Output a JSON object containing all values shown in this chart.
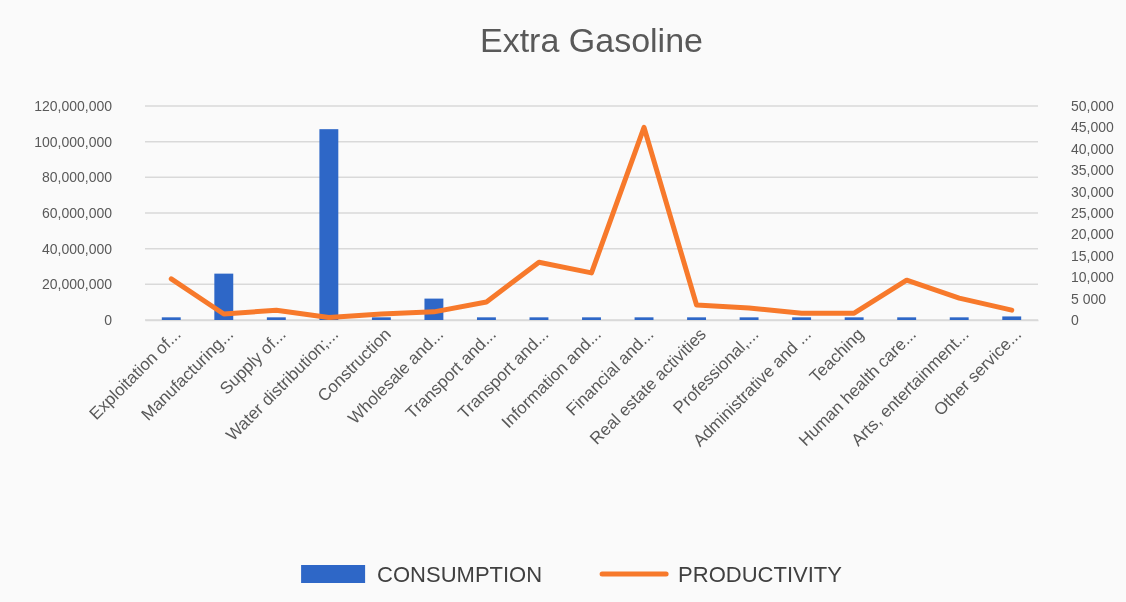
{
  "chart_data": {
    "type": "bar",
    "title": "Extra Gasoline",
    "categories": [
      "Exploitation of...",
      "Manufacturing...",
      "Supply of...",
      "Water distribution;...",
      "Construction",
      "Wholesale and...",
      "Transport and...",
      "Transport and...",
      "Information and...",
      "Financial and...",
      "Real estate activities",
      "Professional,...",
      "Administrative and ...",
      "Teaching",
      "Human health care...",
      "Arts, entertainment...",
      "Other service..."
    ],
    "series": [
      {
        "name": "CONSUMPTION",
        "color": "#2e67c7",
        "values": [
          1500000,
          26000000,
          1500000,
          107000000,
          1500000,
          12000000,
          1500000,
          1500000,
          1500000,
          1500000,
          1500000,
          1500000,
          1500000,
          1500000,
          1500000,
          1500000,
          2000000
        ]
      },
      {
        "name": "PRODUCTIVITY",
        "type": "line",
        "axis": "y2",
        "color": "#f7792b",
        "values": [
          9600,
          1400,
          2300,
          600,
          1400,
          1900,
          4200,
          13500,
          11000,
          45000,
          3500,
          2800,
          1600,
          1600,
          9300,
          5100,
          2300
        ]
      }
    ],
    "ylim": [
      0,
      120000000
    ],
    "yticks": [
      {
        "value": 0,
        "label": "0"
      },
      {
        "value": 20000000,
        "label": "20,000,000"
      },
      {
        "value": 40000000,
        "label": "40,000,000"
      },
      {
        "value": 60000000,
        "label": "60,000,000"
      },
      {
        "value": 80000000,
        "label": "80,000,000"
      },
      {
        "value": 100000000,
        "label": "100,000,000"
      },
      {
        "value": 120000000,
        "label": "120,000,000"
      }
    ],
    "y2lim": [
      0,
      50000
    ],
    "y2ticks": [
      {
        "value": 0,
        "label": "0"
      },
      {
        "value": 5000,
        "label": "5 000"
      },
      {
        "value": 10000,
        "label": "10,000"
      },
      {
        "value": 15000,
        "label": "15,000"
      },
      {
        "value": 20000,
        "label": "20,000"
      },
      {
        "value": 25000,
        "label": "25,000"
      },
      {
        "value": 30000,
        "label": "30,000"
      },
      {
        "value": 35000,
        "label": "35,000"
      },
      {
        "value": 40000,
        "label": "40,000"
      },
      {
        "value": 45000,
        "label": "45,000"
      },
      {
        "value": 50000,
        "label": "50,000"
      }
    ],
    "grid": "y",
    "legend": "bottom",
    "marker": "none",
    "line_style": "solid"
  }
}
